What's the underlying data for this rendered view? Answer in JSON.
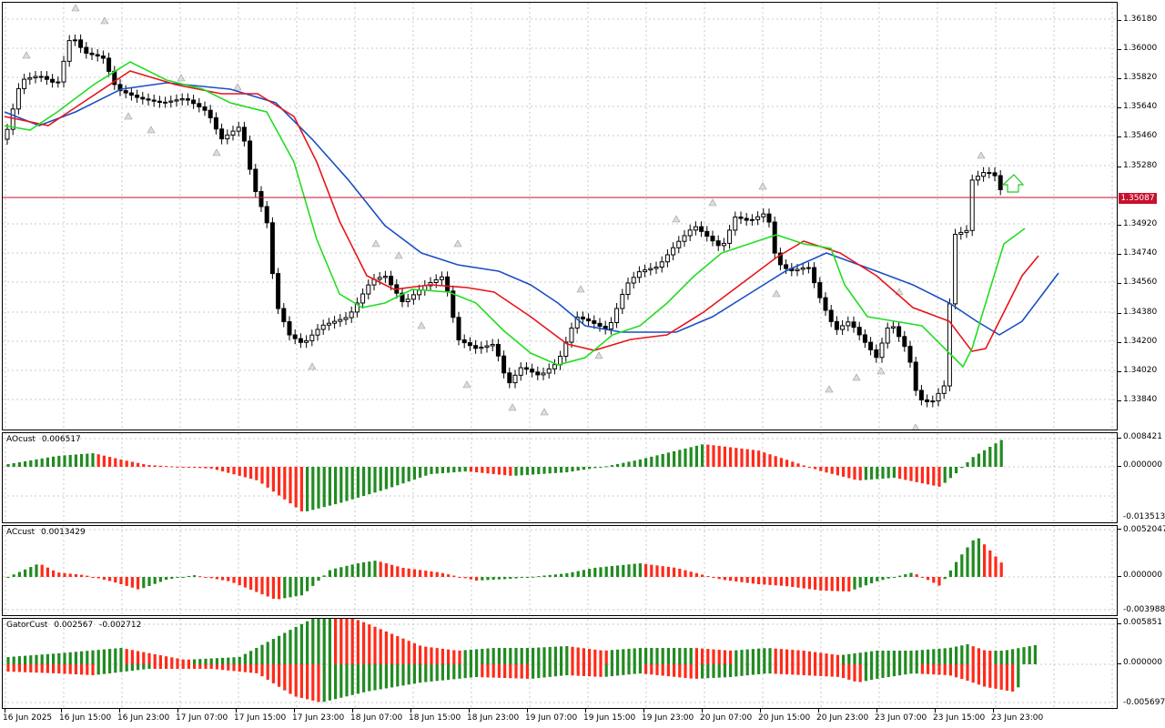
{
  "main_chart": {
    "current_price": "1.35087",
    "price_ticks": [
      "1.36180",
      "1.36000",
      "1.35820",
      "1.35640",
      "1.35460",
      "1.35280",
      "1.34920",
      "1.34740",
      "1.34560",
      "1.34380",
      "1.34200",
      "1.34020",
      "1.33840"
    ],
    "signal_arrow": "up-arrow-icon"
  },
  "indicators": [
    {
      "name": "AOcust",
      "values": [
        "0.006517"
      ],
      "scale": [
        "0.008421",
        "0.000000",
        "-0.013513"
      ]
    },
    {
      "name": "ACcust",
      "values": [
        "0.0013429"
      ],
      "scale": [
        "0.0052047",
        "0.000000",
        "-0.0039888"
      ]
    },
    {
      "name": "GatorCust",
      "values": [
        "0.002567",
        "-0.002712"
      ],
      "scale": [
        "0.005851",
        "0.000000",
        "-0.005697"
      ]
    }
  ],
  "time_axis": [
    "16 Jun 2025",
    "16 Jun 15:00",
    "16 Jun 23:00",
    "17 Jun 07:00",
    "17 Jun 15:00",
    "17 Jun 23:00",
    "18 Jun 07:00",
    "18 Jun 15:00",
    "18 Jun 23:00",
    "19 Jun 07:00",
    "19 Jun 15:00",
    "19 Jun 23:00",
    "20 Jun 07:00",
    "20 Jun 15:00",
    "20 Jun 23:00",
    "23 Jun 07:00",
    "23 Jun 15:00",
    "23 Jun 23:00"
  ],
  "colors": {
    "bull_bar": "#228b22",
    "bear_bar": "#ff2a1a",
    "jaw_line": "#1a4fc4",
    "teeth_line": "#e8141b",
    "lips_line": "#22dd22",
    "price_line": "#c8102e",
    "grid": "#c8c8c8"
  }
}
